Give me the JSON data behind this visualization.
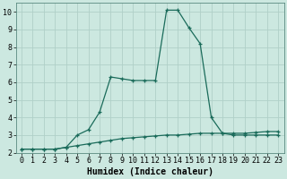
{
  "xlabel": "Humidex (Indice chaleur)",
  "background_color": "#cce8e0",
  "grid_color": "#b0d0c8",
  "line_color": "#1a6b5a",
  "x_line1": [
    0,
    1,
    2,
    3,
    4,
    5,
    6,
    7,
    8,
    9,
    10,
    11,
    12,
    13,
    14,
    15,
    16,
    17,
    18,
    19,
    20,
    21,
    22,
    23
  ],
  "y_line1": [
    2.2,
    2.2,
    2.2,
    2.2,
    2.3,
    3.0,
    3.3,
    4.3,
    6.3,
    6.2,
    6.1,
    6.1,
    6.1,
    10.1,
    10.1,
    9.1,
    8.2,
    4.0,
    3.1,
    3.0,
    3.0,
    3.0,
    3.0,
    3.0
  ],
  "x_line2": [
    0,
    1,
    2,
    3,
    4,
    5,
    6,
    7,
    8,
    9,
    10,
    11,
    12,
    13,
    14,
    15,
    16,
    17,
    18,
    19,
    20,
    21,
    22,
    23
  ],
  "y_line2": [
    2.2,
    2.2,
    2.2,
    2.2,
    2.3,
    2.4,
    2.5,
    2.6,
    2.7,
    2.8,
    2.85,
    2.9,
    2.95,
    3.0,
    3.0,
    3.05,
    3.1,
    3.1,
    3.1,
    3.1,
    3.1,
    3.15,
    3.2,
    3.2
  ],
  "ylim": [
    2.0,
    10.5
  ],
  "xlim": [
    -0.5,
    23.5
  ],
  "yticks": [
    2,
    3,
    4,
    5,
    6,
    7,
    8,
    9,
    10
  ],
  "xticks": [
    0,
    1,
    2,
    3,
    4,
    5,
    6,
    7,
    8,
    9,
    10,
    11,
    12,
    13,
    14,
    15,
    16,
    17,
    18,
    19,
    20,
    21,
    22,
    23
  ],
  "xlabel_fontsize": 7,
  "tick_fontsize": 6
}
